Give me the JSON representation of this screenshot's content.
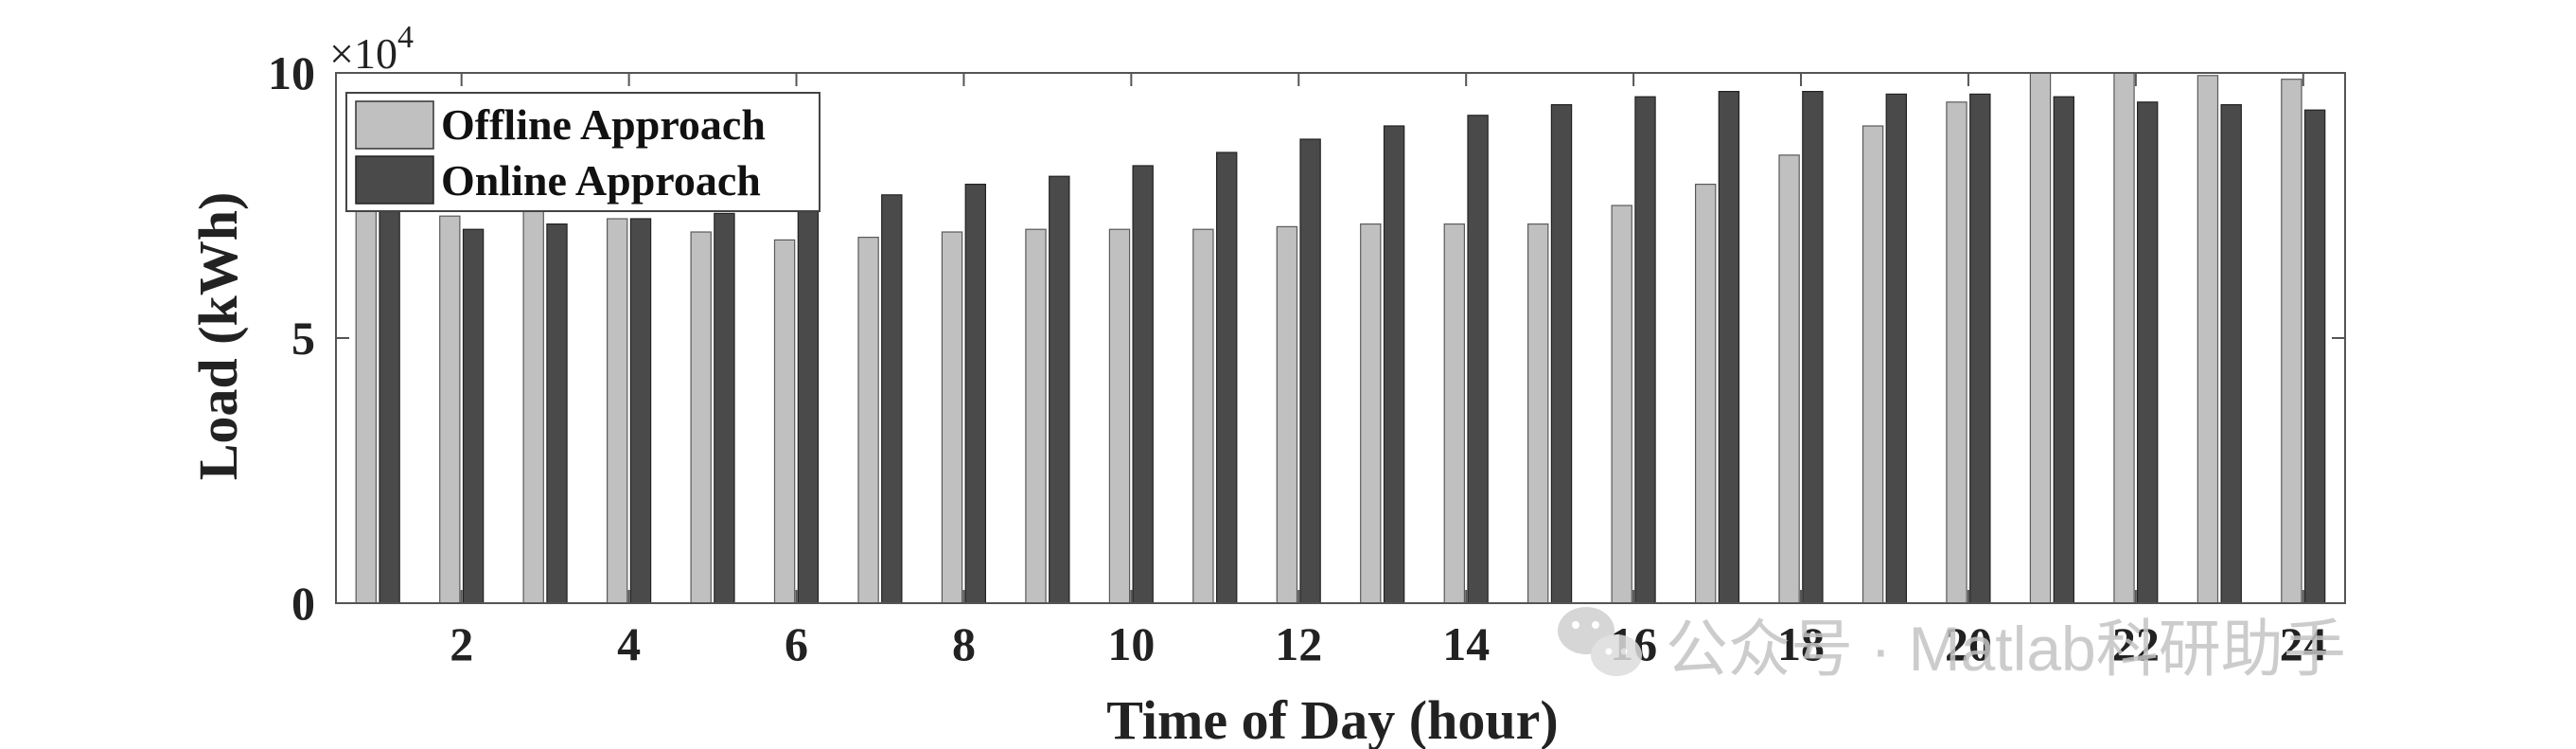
{
  "chart_data": {
    "type": "bar",
    "xlabel": "Time of Day (hour)",
    "ylabel": "Load (kWh)",
    "ylim": [
      0,
      100000
    ],
    "y_exponent_label": "×10",
    "y_exponent_power": "4",
    "yticks": [
      {
        "value": 0,
        "label": "0"
      },
      {
        "value": 50000,
        "label": "5"
      },
      {
        "value": 100000,
        "label": "10"
      }
    ],
    "x": [
      1,
      2,
      3,
      4,
      5,
      6,
      7,
      8,
      9,
      10,
      11,
      12,
      13,
      14,
      15,
      16,
      17,
      18,
      19,
      20,
      21,
      22,
      23,
      24
    ],
    "xticks": [
      2,
      4,
      6,
      8,
      10,
      12,
      14,
      16,
      18,
      20,
      22,
      24
    ],
    "series": [
      {
        "name": "Offline Approach",
        "color": "#c0c0c0",
        "values": [
          91500,
          73000,
          74000,
          72500,
          70000,
          68500,
          69000,
          70000,
          70500,
          70500,
          70500,
          71000,
          71500,
          71500,
          71500,
          75000,
          79000,
          84500,
          90000,
          94500,
          100000,
          100000,
          99500,
          98800
        ]
      },
      {
        "name": "Online Approach",
        "color": "#4a4a4a",
        "values": [
          86000,
          70500,
          71500,
          72500,
          73500,
          74500,
          77000,
          79000,
          80500,
          82500,
          85000,
          87500,
          90000,
          92000,
          94000,
          95500,
          96500,
          96500,
          96000,
          96000,
          95500,
          94500,
          94000,
          93000
        ]
      }
    ],
    "legend": "top-left",
    "grid": false
  },
  "watermark": {
    "text": "公众号 · Matlab科研助手",
    "icon": "wechat-icon"
  }
}
